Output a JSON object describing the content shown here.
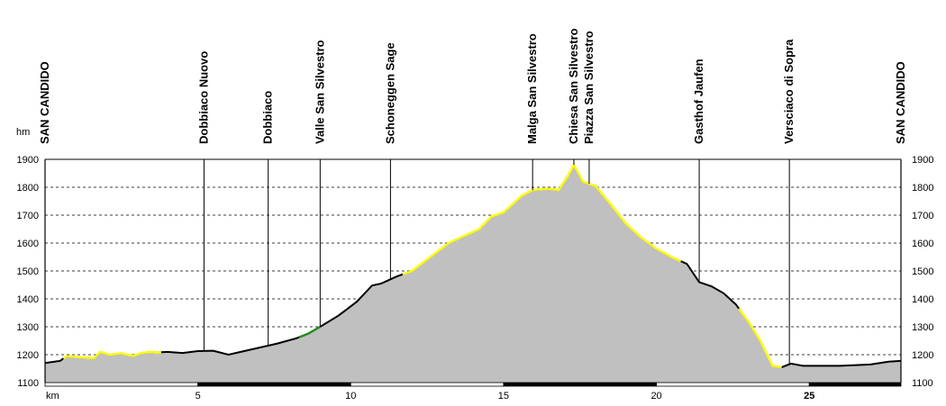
{
  "chart_data": {
    "type": "area",
    "title": "",
    "xlabel": "km",
    "ylabel": "hm",
    "xlim": [
      0,
      28
    ],
    "ylim": [
      1100,
      1900
    ],
    "x_ticks": [
      5,
      10,
      15,
      20,
      25
    ],
    "y_ticks": [
      1100,
      1200,
      1300,
      1400,
      1500,
      1600,
      1700,
      1800,
      1900
    ],
    "grid": true,
    "colors": {
      "fill": "#c0c0c0",
      "line": "#000000",
      "yellow": "#ffff00",
      "green": "#228b22",
      "grid": "#000000"
    },
    "waypoints": [
      {
        "name": "SAN CANDIDO",
        "km": 0
      },
      {
        "name": "Dobbiaco Nuovo",
        "km": 5.2
      },
      {
        "name": "Dobbiaco",
        "km": 7.3
      },
      {
        "name": "Valle San Silvestro",
        "km": 9.0
      },
      {
        "name": "Schoneggen Sage",
        "km": 11.3
      },
      {
        "name": "Malga San Silvestro",
        "km": 15.95
      },
      {
        "name": "Chiesa San Silvestro",
        "km": 17.3
      },
      {
        "name": "Piazza San Silvestro",
        "km": 17.8
      },
      {
        "name": "Gasthof Jaufen",
        "km": 21.4
      },
      {
        "name": "Versciaco di Sopra",
        "km": 24.35
      },
      {
        "name": "SAN CANDIDO",
        "km": 28
      }
    ],
    "profile": [
      [
        0,
        1170
      ],
      [
        0.5,
        1178
      ],
      [
        0.7,
        1195
      ],
      [
        1.2,
        1190
      ],
      [
        1.6,
        1188
      ],
      [
        1.8,
        1210
      ],
      [
        2.1,
        1200
      ],
      [
        2.5,
        1205
      ],
      [
        2.9,
        1195
      ],
      [
        3.1,
        1205
      ],
      [
        3.4,
        1210
      ],
      [
        3.7,
        1208
      ],
      [
        4.0,
        1210
      ],
      [
        4.5,
        1206
      ],
      [
        5.0,
        1213
      ],
      [
        5.5,
        1214
      ],
      [
        6.0,
        1200
      ],
      [
        6.4,
        1210
      ],
      [
        7.0,
        1225
      ],
      [
        7.6,
        1240
      ],
      [
        8.2,
        1258
      ],
      [
        8.6,
        1275
      ],
      [
        9.0,
        1300
      ],
      [
        9.6,
        1340
      ],
      [
        10.2,
        1390
      ],
      [
        10.7,
        1448
      ],
      [
        11.0,
        1455
      ],
      [
        11.5,
        1480
      ],
      [
        12.0,
        1500
      ],
      [
        12.6,
        1550
      ],
      [
        13.2,
        1600
      ],
      [
        13.8,
        1630
      ],
      [
        14.2,
        1650
      ],
      [
        14.6,
        1695
      ],
      [
        15.0,
        1710
      ],
      [
        15.3,
        1740
      ],
      [
        15.6,
        1770
      ],
      [
        15.95,
        1790
      ],
      [
        16.5,
        1795
      ],
      [
        16.8,
        1790
      ],
      [
        17.1,
        1840
      ],
      [
        17.3,
        1880
      ],
      [
        17.6,
        1820
      ],
      [
        18.0,
        1805
      ],
      [
        18.5,
        1740
      ],
      [
        19.0,
        1670
      ],
      [
        19.5,
        1620
      ],
      [
        20.0,
        1580
      ],
      [
        20.5,
        1550
      ],
      [
        21.0,
        1525
      ],
      [
        21.4,
        1460
      ],
      [
        21.8,
        1445
      ],
      [
        22.2,
        1420
      ],
      [
        22.6,
        1380
      ],
      [
        23.0,
        1320
      ],
      [
        23.4,
        1250
      ],
      [
        23.8,
        1160
      ],
      [
        24.1,
        1155
      ],
      [
        24.4,
        1168
      ],
      [
        24.8,
        1160
      ],
      [
        26.0,
        1160
      ],
      [
        27.0,
        1165
      ],
      [
        27.6,
        1175
      ],
      [
        28.0,
        1178
      ]
    ],
    "highlight_segments": [
      {
        "color": "yellow",
        "from_km": 0.6,
        "to_km": 3.8
      },
      {
        "color": "green",
        "from_km": 8.3,
        "to_km": 9.0
      },
      {
        "color": "yellow",
        "from_km": 11.7,
        "to_km": 18.0
      },
      {
        "color": "yellow",
        "from_km": 18.0,
        "to_km": 20.8
      },
      {
        "color": "yellow",
        "from_km": 22.7,
        "to_km": 24.1
      }
    ]
  }
}
